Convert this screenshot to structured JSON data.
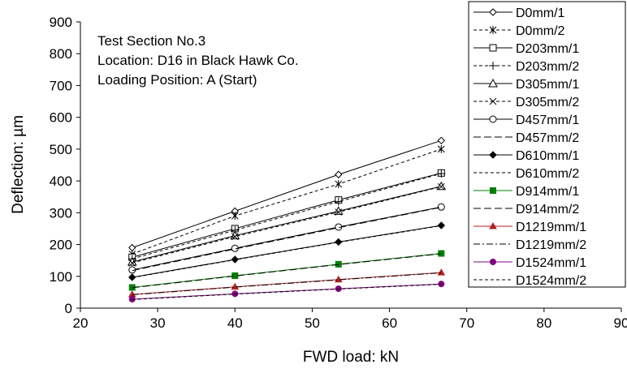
{
  "chart_data": {
    "type": "line",
    "xlabel": "FWD load: kN",
    "ylabel": "Deflection: µm",
    "xlim": [
      20,
      90
    ],
    "ylim": [
      0,
      900
    ],
    "xticks": [
      20,
      30,
      40,
      50,
      60,
      70,
      80,
      90
    ],
    "yticks": [
      0,
      100,
      200,
      300,
      400,
      500,
      600,
      700,
      800,
      900
    ],
    "grid": false,
    "legend_position": "top-right",
    "annotations": [
      "Test Section No.3",
      "Location: D16 in Black Hawk Co.",
      "Loading Position: A (Start)"
    ],
    "x": [
      26.7,
      40.0,
      53.4,
      66.7
    ],
    "series": [
      {
        "name": "D0mm/1",
        "values": [
          190,
          305,
          420,
          527
        ],
        "marker": "diamond-open",
        "dash": "solid"
      },
      {
        "name": "D0mm/2",
        "values": [
          170,
          290,
          390,
          500
        ],
        "marker": "asterisk",
        "dash": "dashed"
      },
      {
        "name": "D203mm/1",
        "values": [
          160,
          250,
          340,
          425
        ],
        "marker": "square-open",
        "dash": "solid"
      },
      {
        "name": "D203mm/2",
        "values": [
          155,
          245,
          335,
          423
        ],
        "marker": "plus",
        "dash": "dashed"
      },
      {
        "name": "D305mm/1",
        "values": [
          145,
          228,
          305,
          383
        ],
        "marker": "triangle-open",
        "dash": "solid"
      },
      {
        "name": "D305mm/2",
        "values": [
          142,
          225,
          302,
          382
        ],
        "marker": "x",
        "dash": "dashed"
      },
      {
        "name": "D457mm/1",
        "values": [
          120,
          188,
          255,
          318
        ],
        "marker": "circle-open",
        "dash": "solid"
      },
      {
        "name": "D457mm/2",
        "values": [
          118,
          186,
          253,
          317
        ],
        "marker": "none",
        "dash": "longdash"
      },
      {
        "name": "D610mm/1",
        "values": [
          97,
          153,
          208,
          260
        ],
        "marker": "diamond-filled",
        "dash": "solid"
      },
      {
        "name": "D610mm/2",
        "values": [
          96,
          152,
          207,
          259
        ],
        "marker": "none",
        "dash": "dashed"
      },
      {
        "name": "D914mm/1",
        "values": [
          65,
          102,
          138,
          172
        ],
        "marker": "square-filled",
        "dash": "solid"
      },
      {
        "name": "D914mm/2",
        "values": [
          64,
          101,
          137,
          171
        ],
        "marker": "none",
        "dash": "longdash"
      },
      {
        "name": "D1219mm/1",
        "values": [
          43,
          67,
          90,
          112
        ],
        "marker": "triangle-filled",
        "dash": "solid"
      },
      {
        "name": "D1219mm/2",
        "values": [
          42,
          66,
          89,
          111
        ],
        "marker": "none",
        "dash": "dashdot"
      },
      {
        "name": "D1524mm/1",
        "values": [
          28,
          45,
          61,
          76
        ],
        "marker": "circle-filled",
        "dash": "solid"
      },
      {
        "name": "D1524mm/2",
        "values": [
          27,
          44,
          60,
          75
        ],
        "marker": "none",
        "dash": "dashed"
      }
    ],
    "colors": {
      "default": "#000000",
      "D914mm/1": "#008000",
      "D1219mm/1": "#b22222",
      "D1524mm/1": "#800080"
    }
  }
}
